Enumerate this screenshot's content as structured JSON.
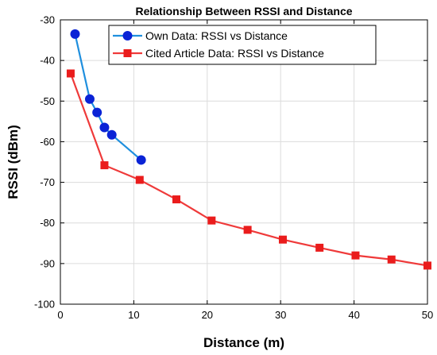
{
  "chart_data": {
    "type": "line",
    "title": "Relationship Between RSSI and Distance",
    "xlabel": "Distance (m)",
    "ylabel": "RSSI (dBm)",
    "xlim": [
      0,
      50
    ],
    "ylim": [
      -100,
      -30
    ],
    "xticks": [
      0,
      10,
      20,
      30,
      40,
      50
    ],
    "yticks": [
      -100,
      -90,
      -80,
      -70,
      -60,
      -50,
      -40,
      -30
    ],
    "grid": true,
    "legend_position": "top-center",
    "series": [
      {
        "name": "Own Data: RSSI vs Distance",
        "color": "#1f8fde",
        "marker": "circle",
        "marker_color": "#0a23d6",
        "x": [
          2,
          4,
          5,
          6,
          7,
          11
        ],
        "y": [
          -33.5,
          -49.5,
          -52.8,
          -56.5,
          -58.3,
          -64.5
        ]
      },
      {
        "name": "Cited Article Data: RSSI vs Distance",
        "color": "#ef3a3a",
        "marker": "square",
        "marker_color": "#ea1c1c",
        "x": [
          1.4,
          6,
          10.8,
          15.8,
          20.6,
          25.5,
          30.3,
          35.3,
          40.2,
          45.1,
          50
        ],
        "y": [
          -43.2,
          -65.8,
          -69.4,
          -74.2,
          -79.4,
          -81.7,
          -84.1,
          -86.1,
          -88,
          -89,
          -90.5
        ]
      }
    ]
  }
}
